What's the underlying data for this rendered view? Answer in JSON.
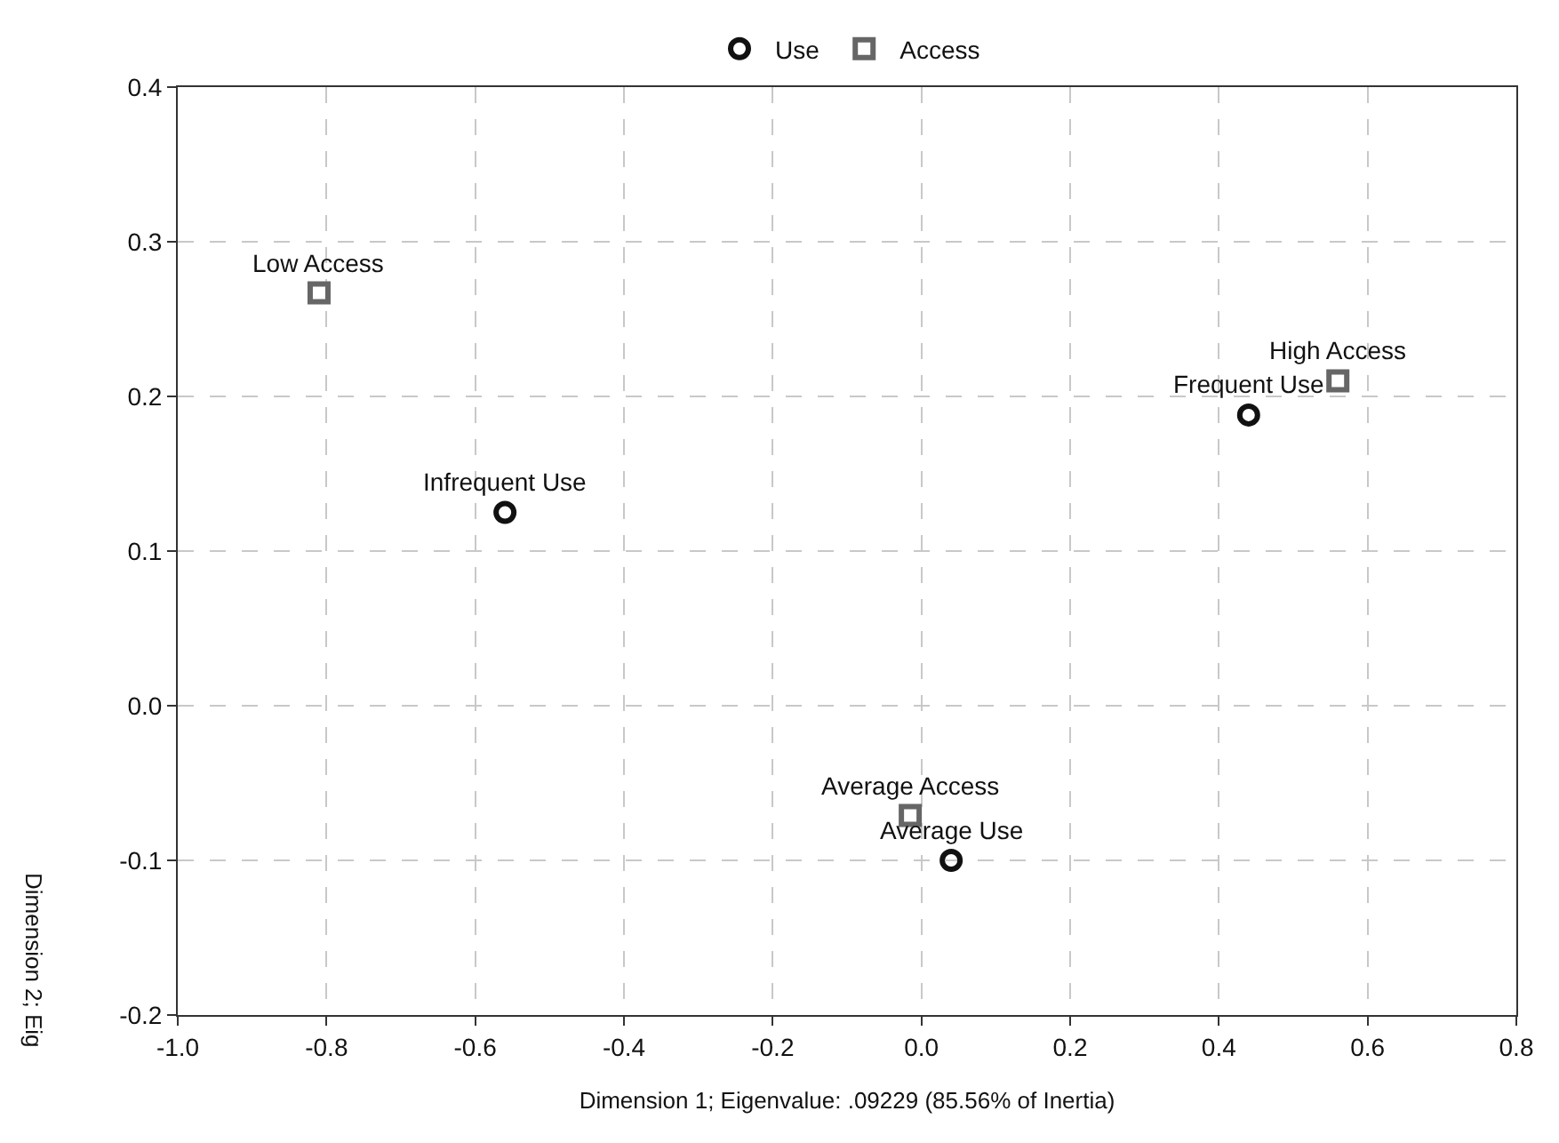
{
  "chart_data": {
    "type": "scatter",
    "xlabel": "Dimension 1; Eigenvalue: .09229 (85.56% of Inertia)",
    "ylabel": "Dimension 2; Eig",
    "series": [
      {
        "name": "Use",
        "color": "#111111",
        "marker": "circle",
        "x": [
          -0.56,
          0.04,
          0.44
        ],
        "values": [
          0.125,
          -0.1,
          0.188
        ]
      },
      {
        "name": "Access",
        "color": "#666666",
        "marker": "square",
        "x": [
          -0.81,
          -0.015,
          0.56
        ],
        "values": [
          0.267,
          -0.071,
          0.21
        ]
      }
    ],
    "annotations": [
      {
        "text": "Infrequent Use",
        "x": -0.56,
        "y": 0.125
      },
      {
        "text": "Average Use",
        "x": 0.04,
        "y": -0.1
      },
      {
        "text": "Frequent Use",
        "x": 0.44,
        "y": 0.188
      },
      {
        "text": "Low Access",
        "x": -0.81,
        "y": 0.267
      },
      {
        "text": "Average Access",
        "x": -0.015,
        "y": -0.071
      },
      {
        "text": "High Access",
        "x": 0.56,
        "y": 0.21
      }
    ],
    "xlim": [
      -1.0,
      0.8
    ],
    "xticks": [
      {
        "value": -1.0,
        "label": "-1.0"
      },
      {
        "value": -0.8,
        "label": "-0.8"
      },
      {
        "value": -0.6,
        "label": "-0.6"
      },
      {
        "value": -0.4,
        "label": "-0.4"
      },
      {
        "value": -0.2,
        "label": "-0.2"
      },
      {
        "value": 0.0,
        "label": "0.0"
      },
      {
        "value": 0.2,
        "label": "0.2"
      },
      {
        "value": 0.4,
        "label": "0.4"
      },
      {
        "value": 0.6,
        "label": "0.6"
      },
      {
        "value": 0.8,
        "label": "0.8"
      }
    ],
    "ylim": [
      -0.2,
      0.4
    ],
    "yticks": [
      {
        "value": -0.2,
        "label": "-0.2"
      },
      {
        "value": -0.1,
        "label": "-0.1"
      },
      {
        "value": 0.0,
        "label": "0.0"
      },
      {
        "value": 0.1,
        "label": "0.1"
      },
      {
        "value": 0.2,
        "label": "0.2"
      },
      {
        "value": 0.3,
        "label": "0.3"
      },
      {
        "value": 0.4,
        "label": "0.4"
      }
    ],
    "grid": true,
    "legend": "top"
  }
}
